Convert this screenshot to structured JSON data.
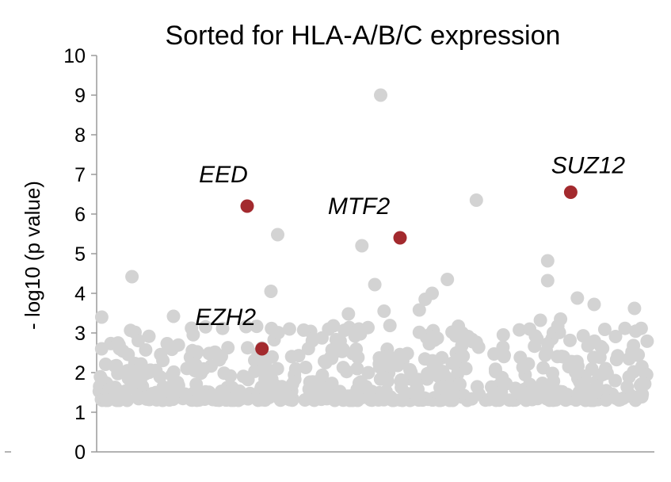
{
  "chart_data": {
    "type": "scatter",
    "title": "Sorted for HLA-A/B/C expression",
    "ylabel": "- log10 (p value)",
    "xlabel": "",
    "ylim": [
      0,
      10
    ],
    "yticks": [
      "0",
      "1",
      "2",
      "3",
      "4",
      "5",
      "6",
      "7",
      "8",
      "9",
      "10"
    ],
    "grid": false,
    "colors": {
      "background_points": "#d3d3d3",
      "highlight_points": "#a32a2e"
    },
    "highlighted": [
      {
        "label": "EED",
        "rank": 0.2703,
        "y": 6.2
      },
      {
        "label": "EZH2",
        "rank": 0.2973,
        "y": 2.6
      },
      {
        "label": "MTF2",
        "rank": 0.5491,
        "y": 5.4
      },
      {
        "label": "SUZ12",
        "rank": 0.8604,
        "y": 6.55
      }
    ],
    "background": {
      "notable": [
        {
          "rank": 0.5138,
          "y": 9.0
        },
        {
          "rank": 0.6883,
          "y": 6.35
        },
        {
          "rank": 0.3259,
          "y": 5.48
        },
        {
          "rank": 0.4795,
          "y": 5.2
        },
        {
          "rank": 0.8183,
          "y": 4.82
        },
        {
          "rank": 0.0601,
          "y": 4.42
        },
        {
          "rank": 0.8183,
          "y": 4.32
        },
        {
          "rank": 0.5031,
          "y": 4.22
        },
        {
          "rank": 0.3136,
          "y": 4.05
        },
        {
          "rank": 0.6354,
          "y": 4.35
        },
        {
          "rank": 0.6076,
          "y": 4.0
        },
        {
          "rank": 0.595,
          "y": 3.85
        },
        {
          "rank": 0.8726,
          "y": 3.88
        },
        {
          "rank": 0.9032,
          "y": 3.72
        },
        {
          "rank": 0.9767,
          "y": 3.62
        },
        {
          "rank": 0.0049,
          "y": 3.4
        },
        {
          "rank": 0.1359,
          "y": 3.42
        },
        {
          "rank": 0.4549,
          "y": 3.48
        },
        {
          "rank": 0.52,
          "y": 3.55
        },
        {
          "rank": 0.5843,
          "y": 3.58
        },
        {
          "rank": 0.8419,
          "y": 3.35
        },
        {
          "rank": 0.8051,
          "y": 3.32
        },
        {
          "rank": 0.3474,
          "y": 3.1
        },
        {
          "rank": 0.6624,
          "y": 3.0
        },
        {
          "rank": 0.7374,
          "y": 2.95
        }
      ],
      "band": {
        "count": 560,
        "y_min": 1.3,
        "y_max": 3.2,
        "rank_min": 0.0,
        "rank_max": 1.0,
        "seed": 20240517
      }
    }
  }
}
